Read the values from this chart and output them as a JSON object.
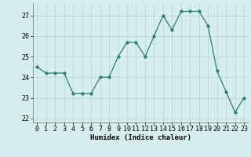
{
  "x": [
    0,
    1,
    2,
    3,
    4,
    5,
    6,
    7,
    8,
    9,
    10,
    11,
    12,
    13,
    14,
    15,
    16,
    17,
    18,
    19,
    20,
    21,
    22,
    23
  ],
  "y": [
    24.5,
    24.2,
    24.2,
    24.2,
    23.2,
    23.2,
    23.2,
    24.0,
    24.0,
    25.0,
    25.7,
    25.7,
    25.0,
    26.0,
    27.0,
    26.3,
    27.2,
    27.2,
    27.2,
    26.5,
    24.3,
    23.3,
    22.3,
    23.0
  ],
  "line_color": "#2e7d6e",
  "marker": "o",
  "marker_size": 2.5,
  "bg_color": "#d6eeee",
  "grid_color": "#b8d8d8",
  "xlabel": "Humidex (Indice chaleur)",
  "ylim": [
    21.8,
    27.6
  ],
  "xlim": [
    -0.5,
    23.5
  ],
  "yticks": [
    22,
    23,
    24,
    25,
    26,
    27
  ],
  "xticks": [
    0,
    1,
    2,
    3,
    4,
    5,
    6,
    7,
    8,
    9,
    10,
    11,
    12,
    13,
    14,
    15,
    16,
    17,
    18,
    19,
    20,
    21,
    22,
    23
  ],
  "label_fontsize": 6.5,
  "tick_fontsize": 6
}
